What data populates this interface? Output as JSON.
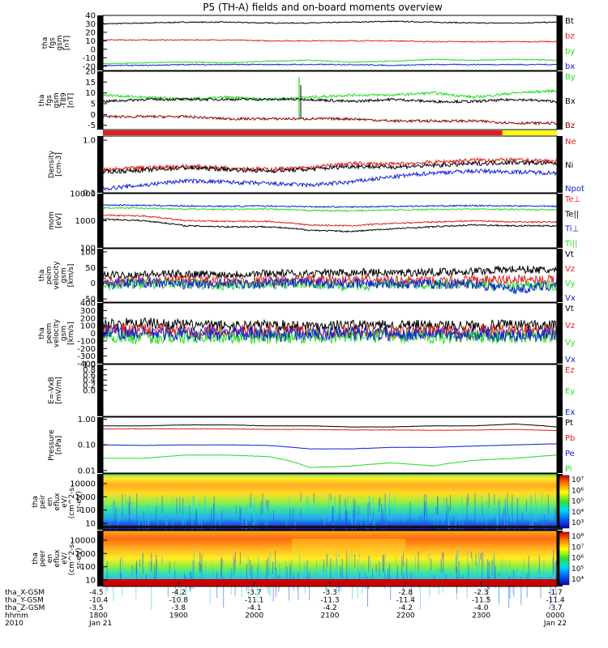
{
  "chart_data": {
    "type": "line",
    "title": "P5 (TH-A) fields and on-board moments overview",
    "colors": {
      "black": "#000000",
      "red": "#e0201b",
      "green": "#22dd22",
      "blue": "#1020d8",
      "darkred": "#8b0000",
      "yellow": "#ffff00"
    },
    "time_axis": {
      "ticks": [
        "1800",
        "1900",
        "2000",
        "2100",
        "2200",
        "2300",
        "0000"
      ],
      "row_labels": [
        "tha_X-GSM",
        "tha_Y-GSM",
        "tha_Z-GSM",
        "hhmm",
        "2010"
      ],
      "rows": [
        [
          "-4.5",
          "-4.2",
          "-3.7",
          "-3.3",
          "-2.8",
          "-2.3",
          "-1.7"
        ],
        [
          "-10.4",
          "-10.8",
          "-11.1",
          "-11.3",
          "-11.4",
          "-11.5",
          "-11.4"
        ],
        [
          "-3.5",
          "-3.8",
          "-4.1",
          "-4.2",
          "-4.2",
          "-4.0",
          "-3.7"
        ]
      ],
      "date_start": "Jan 21",
      "date_end": "Jan 22"
    },
    "panels": [
      {
        "ylabel": [
          "tha",
          "fgs",
          "gsm",
          "[nT]"
        ],
        "scale": "linear",
        "ylim": [
          -25,
          40
        ],
        "ticks": [
          "40",
          "30",
          "20",
          "10",
          "0",
          "-10",
          "-20"
        ],
        "series": [
          {
            "name": "Bt",
            "color": "black",
            "values": [
              30,
              31,
              32,
              32,
              31,
              31,
              32,
              33,
              32,
              31,
              31,
              32
            ]
          },
          {
            "name": "bz",
            "color": "red",
            "values": [
              11,
              11,
              11,
              11,
              10,
              10,
              10,
              10,
              9,
              9,
              9,
              9
            ]
          },
          {
            "name": "by",
            "color": "green",
            "values": [
              -17,
              -16,
              -15,
              -16,
              -14,
              -13,
              -15,
              -14,
              -12,
              -13,
              -12,
              -13
            ]
          },
          {
            "name": "bx",
            "color": "blue",
            "values": [
              -19,
              -19,
              -18,
              -18,
              -18,
              -18,
              -18,
              -19,
              -18,
              -18,
              -18,
              -18
            ]
          }
        ]
      },
      {
        "ylabel": [
          "tha",
          "fgs",
          "gsm",
          "-T89",
          "[nT]"
        ],
        "scale": "linear",
        "ylim": [
          -7,
          20
        ],
        "ticks": [
          "20",
          "15",
          "10",
          "5",
          "0",
          "-5"
        ],
        "series": [
          {
            "name": "By",
            "color": "green",
            "values": [
              9,
              8,
              7,
              8,
              7,
              8,
              9,
              9,
              10,
              8,
              10,
              11
            ]
          },
          {
            "name": "Bx",
            "color": "black",
            "values": [
              6,
              7,
              7,
              7,
              7,
              7,
              6,
              7,
              6,
              6,
              7,
              6
            ]
          },
          {
            "name": "Bz",
            "color": "darkred",
            "values": [
              -1,
              -1,
              -1,
              -2,
              -2,
              -2,
              -2,
              -3,
              -3,
              -3,
              -4,
              -4
            ]
          }
        ],
        "flag_bar": {
          "split": 0.88
        }
      },
      {
        "ylabel": [
          "Density",
          "[cm-3]"
        ],
        "scale": "log",
        "ylim": [
          0.1,
          1.2
        ],
        "ticks": [
          "1.0",
          "0.1"
        ],
        "series": [
          {
            "name": "Ne",
            "color": "red",
            "values": [
              0.27,
              0.3,
              0.32,
              0.3,
              0.28,
              0.3,
              0.36,
              0.35,
              0.38,
              0.42,
              0.42,
              0.4
            ]
          },
          {
            "name": "Ni",
            "color": "black",
            "values": [
              0.25,
              0.27,
              0.3,
              0.28,
              0.26,
              0.28,
              0.32,
              0.31,
              0.33,
              0.36,
              0.38,
              0.36
            ]
          },
          {
            "name": "Npot",
            "color": "blue",
            "values": [
              0.12,
              0.14,
              0.17,
              0.16,
              0.15,
              0.14,
              0.16,
              0.2,
              0.24,
              0.26,
              0.25,
              0.24
            ]
          }
        ]
      },
      {
        "ylabel": [
          "mom",
          "[eV]"
        ],
        "scale": "log",
        "ylim": [
          100,
          10000
        ],
        "ticks": [
          "10000",
          "1000",
          "100"
        ],
        "series": [
          {
            "name": "Te⊥",
            "color": "red",
            "values": [
              1600,
              1500,
              1000,
              950,
              950,
              700,
              650,
              800,
              900,
              1000,
              900,
              900
            ]
          },
          {
            "name": "Te||",
            "color": "black",
            "values": [
              1150,
              1000,
              650,
              600,
              600,
              450,
              400,
              500,
              600,
              700,
              650,
              650
            ]
          },
          {
            "name": "Ti⊥",
            "color": "blue",
            "values": [
              3800,
              3700,
              3500,
              3400,
              3500,
              3300,
              3200,
              3400,
              3500,
              3600,
              3500,
              3400
            ]
          },
          {
            "name": "Ti||",
            "color": "green",
            "values": [
              3000,
              2900,
              2700,
              2600,
              2700,
              2400,
              2300,
              2500,
              2600,
              2700,
              2600,
              2500
            ]
          }
        ]
      },
      {
        "ylabel": [
          "tha",
          "peim",
          "velocity",
          "gsm",
          "[km/s]"
        ],
        "scale": "linear",
        "ylim": [
          -60,
          110
        ],
        "ticks": [
          "100",
          "50",
          "0",
          "-50"
        ],
        "series": [
          {
            "name": "Vt",
            "color": "black",
            "values": [
              25,
              28,
              30,
              28,
              32,
              30,
              35,
              33,
              36,
              38,
              45,
              40
            ]
          },
          {
            "name": "Vz",
            "color": "red",
            "values": [
              5,
              8,
              10,
              6,
              7,
              9,
              10,
              8,
              6,
              9,
              12,
              10
            ]
          },
          {
            "name": "Vy",
            "color": "green",
            "values": [
              -5,
              -3,
              -2,
              -6,
              -4,
              -3,
              -8,
              -5,
              -2,
              -4,
              -10,
              -6
            ]
          },
          {
            "name": "Vx",
            "color": "blue",
            "values": [
              0,
              2,
              -3,
              -2,
              0,
              1,
              -2,
              0,
              -3,
              -2,
              -20,
              -5
            ]
          }
        ]
      },
      {
        "ylabel": [
          "tha",
          "peem",
          "velocity",
          "gsm",
          "[km/s]"
        ],
        "scale": "linear",
        "ylim": [
          -400,
          400
        ],
        "ticks": [
          "400",
          "300",
          "200",
          "100",
          "0",
          "-100",
          "-200",
          "-300",
          "-400"
        ],
        "series": [
          {
            "name": "Vt",
            "color": "black",
            "values": [
              120,
              140,
              110,
              100,
              110,
              100,
              110,
              100,
              110,
              100,
              110,
              105
            ]
          },
          {
            "name": "Vz",
            "color": "red",
            "values": [
              30,
              40,
              30,
              20,
              30,
              20,
              30,
              20,
              30,
              20,
              30,
              20
            ]
          },
          {
            "name": "Vy",
            "color": "green",
            "values": [
              -30,
              -60,
              -40,
              -40,
              -50,
              -40,
              -40,
              -40,
              -50,
              -40,
              -50,
              -40
            ]
          },
          {
            "name": "Vx",
            "color": "blue",
            "values": [
              10,
              0,
              -10,
              0,
              -20,
              -10,
              0,
              -10,
              0,
              -10,
              -20,
              -10
            ]
          }
        ]
      },
      {
        "ylabel": [
          "E=-VxB",
          "[mV/m]"
        ],
        "scale": "linear",
        "ylim": [
          -1,
          1
        ],
        "ticks": [
          "1.0",
          "0.8",
          "0.6",
          "0.4",
          "0.2",
          "0.0"
        ],
        "series": [
          {
            "name": "Ez",
            "color": "red",
            "values": []
          },
          {
            "name": "Ey",
            "color": "green",
            "values": []
          },
          {
            "name": "Ex",
            "color": "blue",
            "values": []
          }
        ]
      },
      {
        "ylabel": [
          "Pressure",
          "[nPa]"
        ],
        "scale": "log",
        "ylim": [
          0.008,
          1.2
        ],
        "ticks": [
          "1.00",
          "0.10",
          "0.01"
        ],
        "series": [
          {
            "name": "Pt",
            "color": "black",
            "values": [
              0.55,
              0.55,
              0.6,
              0.6,
              0.55,
              0.55,
              0.5,
              0.5,
              0.55,
              0.55,
              0.65,
              0.5
            ]
          },
          {
            "name": "Pb",
            "color": "red",
            "values": [
              0.42,
              0.42,
              0.42,
              0.42,
              0.4,
              0.4,
              0.38,
              0.38,
              0.37,
              0.38,
              0.4,
              0.36
            ]
          },
          {
            "name": "Pe",
            "color": "blue",
            "values": [
              0.1,
              0.095,
              0.1,
              0.1,
              0.095,
              0.07,
              0.07,
              0.08,
              0.08,
              0.09,
              0.1,
              0.11
            ]
          },
          {
            "name": "Pi",
            "color": "green",
            "values": [
              0.03,
              0.03,
              0.04,
              0.04,
              0.035,
              0.013,
              0.015,
              0.02,
              0.015,
              0.025,
              0.03,
              0.04
            ]
          }
        ]
      },
      {
        "ylabel": [
          "tha",
          "peir",
          "en",
          "eflux",
          "eV/",
          "(cm^2-s-",
          "sr-eV)"
        ],
        "type": "heatmap",
        "ticks": [
          "10000",
          "1000",
          "100",
          "10"
        ],
        "colorbar_ticks": [
          "10⁷",
          "10⁶",
          "10⁵",
          "10⁴",
          "10³"
        ]
      },
      {
        "ylabel": [
          "tha",
          "peer",
          "en",
          "eflux",
          "eV/",
          "(cm^2-s-",
          "sr-eV)"
        ],
        "type": "heatmap",
        "ticks": [
          "10000",
          "1000",
          "100",
          "10"
        ],
        "colorbar_ticks": [
          "10⁸",
          "10⁷",
          "10⁶",
          "10⁵",
          "10⁴"
        ]
      }
    ]
  }
}
